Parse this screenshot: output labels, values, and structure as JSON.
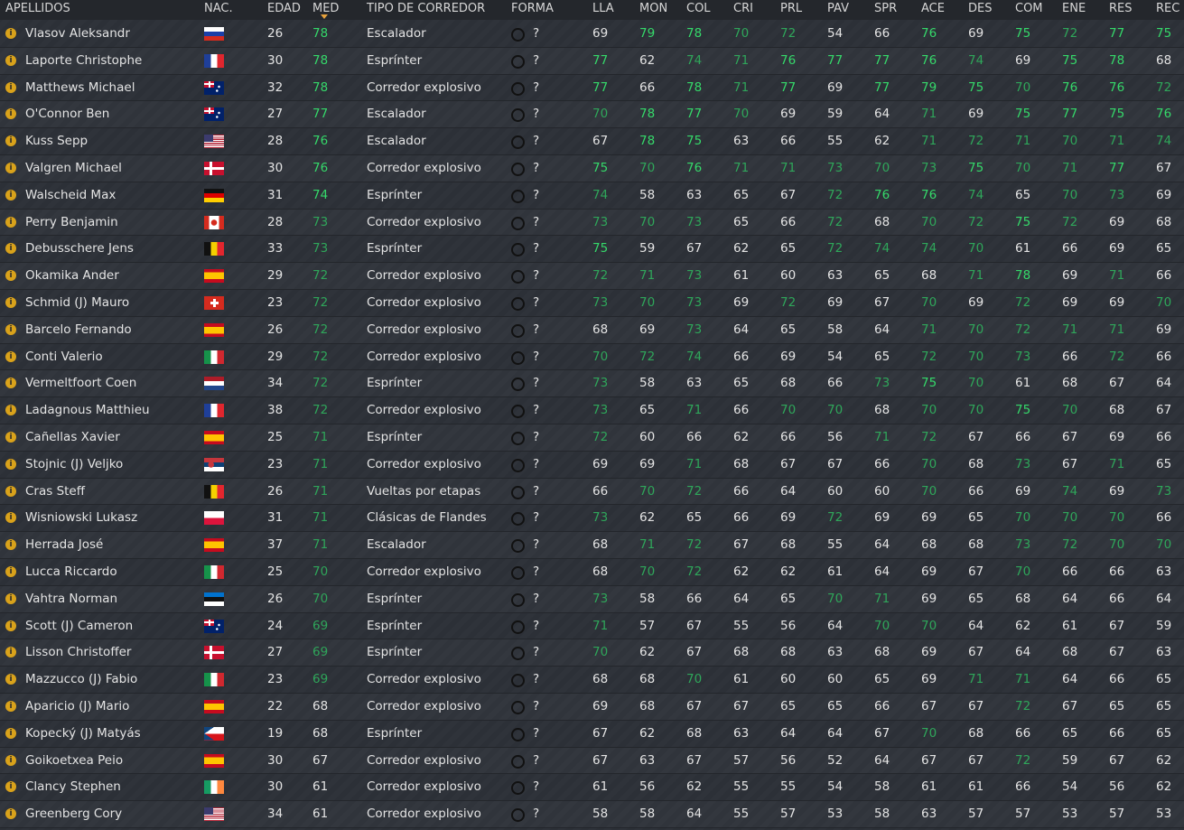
{
  "table": {
    "columns": [
      "APELLIDOS",
      "NAC.",
      "EDAD",
      "MED",
      "TIPO DE CORREDOR",
      "FORMA",
      "LLA",
      "MON",
      "COL",
      "CRI",
      "PRL",
      "PAV",
      "SPR",
      "ACE",
      "DES",
      "COM",
      "ENE",
      "RES",
      "REC"
    ],
    "rows": [
      {
        "name": "Vlasov Aleksandr",
        "age": 26,
        "med": 78,
        "type": "Escalador",
        "form": "?",
        "stats": [
          69,
          79,
          78,
          70,
          72,
          54,
          66,
          76,
          69,
          75,
          72,
          77,
          75
        ]
      },
      {
        "name": "Laporte Christophe",
        "age": 30,
        "med": 78,
        "type": "Esprínter",
        "form": "?",
        "stats": [
          77,
          62,
          74,
          71,
          76,
          77,
          77,
          76,
          74,
          69,
          75,
          78,
          68
        ]
      },
      {
        "name": "Matthews Michael",
        "age": 32,
        "med": 78,
        "type": "Corredor explosivo",
        "form": "?",
        "stats": [
          77,
          66,
          78,
          71,
          77,
          69,
          77,
          79,
          75,
          70,
          76,
          76,
          72
        ]
      },
      {
        "name": "O'Connor Ben",
        "age": 27,
        "med": 77,
        "type": "Escalador",
        "form": "?",
        "stats": [
          70,
          78,
          77,
          70,
          69,
          59,
          64,
          71,
          69,
          75,
          77,
          75,
          76
        ]
      },
      {
        "name": "Kuss Sepp",
        "age": 28,
        "med": 76,
        "type": "Escalador",
        "form": "?",
        "stats": [
          67,
          78,
          75,
          63,
          66,
          55,
          62,
          71,
          72,
          71,
          70,
          71,
          74
        ]
      },
      {
        "name": "Valgren Michael",
        "age": 30,
        "med": 76,
        "type": "Corredor explosivo",
        "form": "?",
        "stats": [
          75,
          70,
          76,
          71,
          71,
          73,
          70,
          73,
          75,
          70,
          71,
          77,
          67
        ]
      },
      {
        "name": "Walscheid Max",
        "age": 31,
        "med": 74,
        "type": "Esprínter",
        "form": "?",
        "stats": [
          74,
          58,
          63,
          65,
          67,
          72,
          76,
          76,
          74,
          65,
          70,
          73,
          69
        ]
      },
      {
        "name": "Perry Benjamin",
        "age": 28,
        "med": 73,
        "type": "Corredor explosivo",
        "form": "?",
        "stats": [
          73,
          70,
          73,
          65,
          66,
          72,
          68,
          70,
          72,
          75,
          72,
          69,
          68
        ]
      },
      {
        "name": "Debusschere Jens",
        "age": 33,
        "med": 73,
        "type": "Esprínter",
        "form": "?",
        "stats": [
          75,
          59,
          67,
          62,
          65,
          72,
          74,
          74,
          70,
          61,
          66,
          69,
          65
        ]
      },
      {
        "name": "Okamika Ander",
        "age": 29,
        "med": 72,
        "type": "Corredor explosivo",
        "form": "?",
        "stats": [
          72,
          71,
          73,
          61,
          60,
          63,
          65,
          68,
          71,
          78,
          69,
          71,
          66
        ]
      },
      {
        "name": "Schmid (J) Mauro",
        "age": 23,
        "med": 72,
        "type": "Corredor explosivo",
        "form": "?",
        "stats": [
          73,
          70,
          73,
          69,
          72,
          69,
          67,
          70,
          69,
          72,
          69,
          69,
          70
        ]
      },
      {
        "name": "Barcelo Fernando",
        "age": 26,
        "med": 72,
        "type": "Corredor explosivo",
        "form": "?",
        "stats": [
          68,
          69,
          73,
          64,
          65,
          58,
          64,
          71,
          70,
          72,
          71,
          71,
          69
        ]
      },
      {
        "name": "Conti Valerio",
        "age": 29,
        "med": 72,
        "type": "Corredor explosivo",
        "form": "?",
        "stats": [
          70,
          72,
          74,
          66,
          69,
          54,
          65,
          72,
          70,
          73,
          66,
          72,
          66
        ]
      },
      {
        "name": "Vermeltfoort Coen",
        "age": 34,
        "med": 72,
        "type": "Esprínter",
        "form": "?",
        "stats": [
          73,
          58,
          63,
          65,
          68,
          66,
          73,
          75,
          70,
          61,
          68,
          67,
          64
        ]
      },
      {
        "name": "Ladagnous Matthieu",
        "age": 38,
        "med": 72,
        "type": "Corredor explosivo",
        "form": "?",
        "stats": [
          73,
          65,
          71,
          66,
          70,
          70,
          68,
          70,
          70,
          75,
          70,
          68,
          67
        ]
      },
      {
        "name": "Cañellas Xavier",
        "age": 25,
        "med": 71,
        "type": "Esprínter",
        "form": "?",
        "stats": [
          72,
          60,
          66,
          62,
          66,
          56,
          71,
          72,
          67,
          66,
          67,
          69,
          66
        ]
      },
      {
        "name": "Stojnic (J) Veljko",
        "age": 23,
        "med": 71,
        "type": "Corredor explosivo",
        "form": "?",
        "stats": [
          69,
          69,
          71,
          68,
          67,
          67,
          66,
          70,
          68,
          73,
          67,
          71,
          65
        ]
      },
      {
        "name": "Cras Steff",
        "age": 26,
        "med": 71,
        "type": "Vueltas por etapas",
        "form": "?",
        "stats": [
          66,
          70,
          72,
          66,
          64,
          60,
          60,
          70,
          66,
          69,
          74,
          69,
          73
        ]
      },
      {
        "name": "Wisniowski Lukasz",
        "age": 31,
        "med": 71,
        "type": "Clásicas de Flandes",
        "form": "?",
        "stats": [
          73,
          62,
          65,
          66,
          69,
          72,
          69,
          69,
          65,
          70,
          70,
          70,
          66
        ]
      },
      {
        "name": "Herrada José",
        "age": 37,
        "med": 71,
        "type": "Escalador",
        "form": "?",
        "stats": [
          68,
          71,
          72,
          67,
          68,
          55,
          64,
          68,
          68,
          73,
          72,
          70,
          70
        ]
      },
      {
        "name": "Lucca Riccardo",
        "age": 25,
        "med": 70,
        "type": "Corredor explosivo",
        "form": "?",
        "stats": [
          68,
          70,
          72,
          62,
          62,
          61,
          64,
          69,
          67,
          70,
          66,
          66,
          63
        ]
      },
      {
        "name": "Vahtra Norman",
        "age": 26,
        "med": 70,
        "type": "Esprínter",
        "form": "?",
        "stats": [
          73,
          58,
          66,
          64,
          65,
          70,
          71,
          69,
          65,
          68,
          64,
          66,
          64
        ]
      },
      {
        "name": "Scott (J) Cameron",
        "age": 24,
        "med": 69,
        "type": "Esprínter",
        "form": "?",
        "stats": [
          71,
          57,
          67,
          55,
          56,
          64,
          70,
          70,
          64,
          62,
          61,
          67,
          59
        ]
      },
      {
        "name": "Lisson Christoffer",
        "age": 27,
        "med": 69,
        "type": "Esprínter",
        "form": "?",
        "stats": [
          70,
          62,
          67,
          68,
          68,
          63,
          68,
          69,
          67,
          64,
          68,
          67,
          63
        ]
      },
      {
        "name": "Mazzucco (J) Fabio",
        "age": 23,
        "med": 69,
        "type": "Corredor explosivo",
        "form": "?",
        "stats": [
          68,
          68,
          70,
          61,
          60,
          60,
          65,
          69,
          71,
          71,
          64,
          66,
          65
        ]
      },
      {
        "name": "Aparicio (J) Mario",
        "age": 22,
        "med": 68,
        "type": "Corredor explosivo",
        "form": "?",
        "stats": [
          69,
          68,
          67,
          67,
          65,
          65,
          66,
          67,
          67,
          72,
          67,
          65,
          65
        ]
      },
      {
        "name": "Kopecký (J) Matyás",
        "age": 19,
        "med": 68,
        "type": "Esprínter",
        "form": "?",
        "stats": [
          67,
          62,
          68,
          63,
          64,
          64,
          67,
          70,
          68,
          66,
          65,
          66,
          65
        ]
      },
      {
        "name": "Goikoetxea Peio",
        "age": 30,
        "med": 67,
        "type": "Corredor explosivo",
        "form": "?",
        "stats": [
          67,
          63,
          67,
          57,
          56,
          52,
          64,
          67,
          67,
          72,
          59,
          67,
          62
        ]
      },
      {
        "name": "Clancy Stephen",
        "age": 30,
        "med": 61,
        "type": "Corredor explosivo",
        "form": "?",
        "stats": [
          61,
          56,
          62,
          55,
          55,
          54,
          58,
          61,
          61,
          66,
          54,
          56,
          62
        ]
      },
      {
        "name": "Greenberg Cory",
        "age": 34,
        "med": 61,
        "type": "Corredor explosivo",
        "form": "?",
        "stats": [
          58,
          58,
          64,
          55,
          57,
          53,
          58,
          63,
          57,
          57,
          53,
          57,
          53
        ]
      }
    ]
  }
}
